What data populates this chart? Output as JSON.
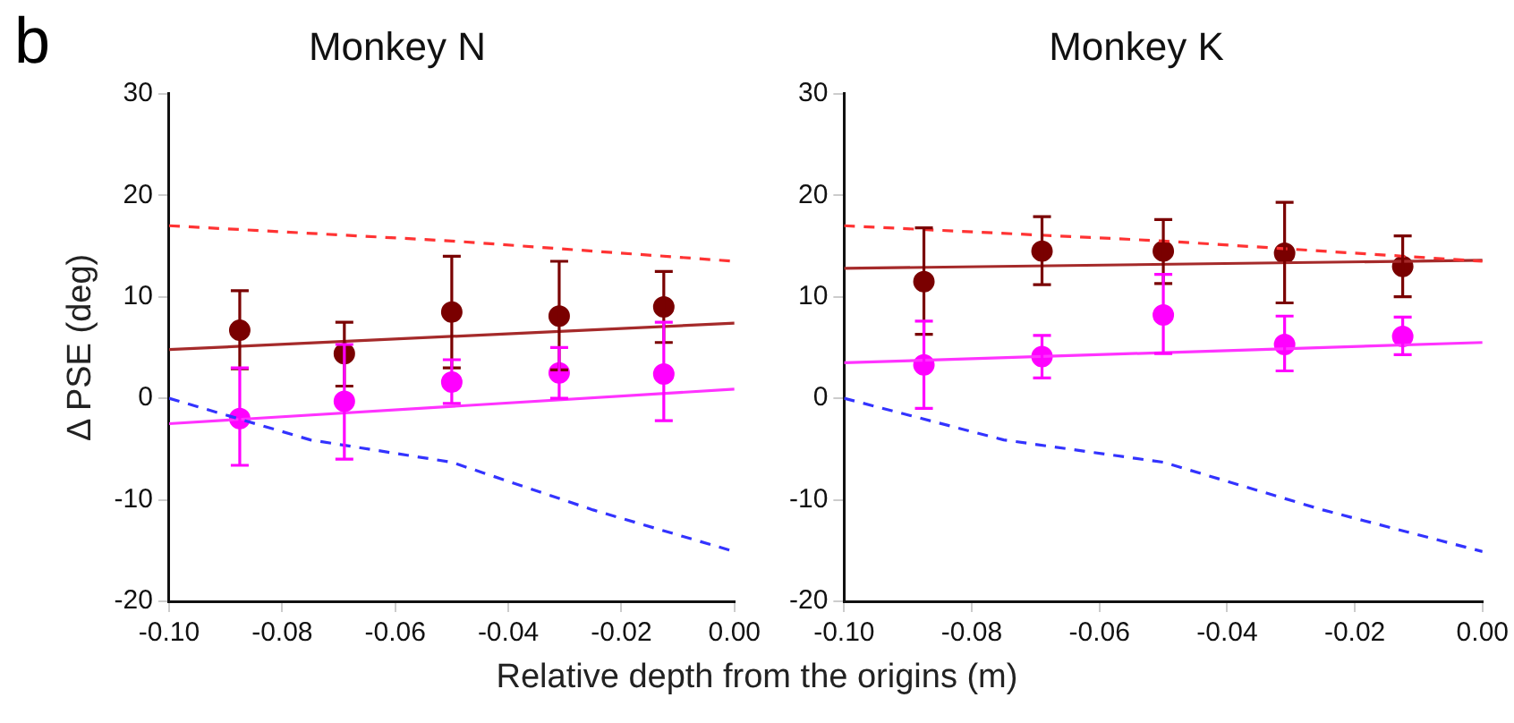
{
  "chart_data": [
    {
      "type": "scatter",
      "title": "Monkey N",
      "ylabel": "Δ PSE (deg)",
      "xlabel": "Relative depth from the origins (m)",
      "annotations": [
        "b"
      ],
      "xlim": [
        -0.1,
        0
      ],
      "xticks": [
        {
          "value": -0.1,
          "label": "-0.10"
        },
        {
          "value": -0.08,
          "label": "-0.08"
        },
        {
          "value": -0.06,
          "label": "-0.06"
        },
        {
          "value": -0.04,
          "label": "-0.04"
        },
        {
          "value": -0.02,
          "label": "-0.02"
        },
        {
          "value": 0,
          "label": "0.00"
        }
      ],
      "ylim": [
        -20,
        30
      ],
      "yticks": [
        -20,
        -10,
        0,
        10,
        20,
        30
      ],
      "grid": false,
      "legend": false,
      "marker": "circle",
      "series": [
        {
          "type": "line",
          "marker": "none",
          "color": "#ff3333",
          "line_style": "dashed",
          "x": [
            -0.1,
            -0.05,
            0
          ],
          "values": [
            17,
            15.5,
            13.5
          ]
        },
        {
          "type": "line",
          "marker": "none",
          "color": "#3333ff",
          "line_style": "dashed",
          "x": [
            -0.1,
            -0.075,
            -0.05,
            -0.025,
            0
          ],
          "values": [
            0,
            -4.1,
            -6.3,
            -11,
            -15.1
          ]
        },
        {
          "type": "line",
          "marker": "none",
          "color": "#a52a2a",
          "line_style": "solid",
          "x": [
            -0.1,
            0
          ],
          "values": [
            4.8,
            7.4
          ]
        },
        {
          "type": "line",
          "marker": "none",
          "color": "#ff33ff",
          "line_style": "solid",
          "x": [
            -0.1,
            0
          ],
          "values": [
            -2.5,
            0.9
          ]
        },
        {
          "color": "#7a0000",
          "x": [
            -0.0875,
            -0.069,
            -0.05,
            -0.031,
            -0.0125
          ],
          "values": [
            6.7,
            4.4,
            8.5,
            8.1,
            9.0
          ],
          "errors": [
            [
              2.9,
              10.6
            ],
            [
              1.2,
              7.5
            ],
            [
              3.0,
              14
            ],
            [
              2.8,
              13.5
            ],
            [
              5.5,
              12.5
            ]
          ]
        },
        {
          "color": "#ff00ff",
          "x": [
            -0.0875,
            -0.069,
            -0.05,
            -0.031,
            -0.0125
          ],
          "values": [
            -2,
            -0.3,
            1.6,
            2.5,
            2.4
          ],
          "errors": [
            [
              -6.6,
              3
            ],
            [
              -6,
              5.3
            ],
            [
              -0.5,
              3.8
            ],
            [
              0,
              5
            ],
            [
              -2.2,
              7.5
            ]
          ]
        }
      ]
    },
    {
      "type": "scatter",
      "title": "Monkey K",
      "xlim": [
        -0.1,
        0
      ],
      "xticks": [
        {
          "value": -0.1,
          "label": "-0.10"
        },
        {
          "value": -0.08,
          "label": "-0.08"
        },
        {
          "value": -0.06,
          "label": "-0.06"
        },
        {
          "value": -0.04,
          "label": "-0.04"
        },
        {
          "value": -0.02,
          "label": "-0.02"
        },
        {
          "value": 0,
          "label": "0.00"
        }
      ],
      "ylim": [
        -20,
        30
      ],
      "yticks": [
        -20,
        -10,
        0,
        10,
        20,
        30
      ],
      "grid": false,
      "legend": false,
      "marker": "circle",
      "series": [
        {
          "type": "line",
          "marker": "none",
          "color": "#ff3333",
          "line_style": "dashed",
          "x": [
            -0.1,
            -0.05,
            0
          ],
          "values": [
            17,
            15.5,
            13.5
          ]
        },
        {
          "type": "line",
          "marker": "none",
          "color": "#3333ff",
          "line_style": "dashed",
          "x": [
            -0.1,
            -0.075,
            -0.05,
            -0.025,
            0
          ],
          "values": [
            0,
            -4.1,
            -6.3,
            -11,
            -15.1
          ]
        },
        {
          "type": "line",
          "marker": "none",
          "color": "#a52a2a",
          "line_style": "solid",
          "x": [
            -0.1,
            0
          ],
          "values": [
            12.8,
            13.6
          ]
        },
        {
          "type": "line",
          "marker": "none",
          "color": "#ff33ff",
          "line_style": "solid",
          "x": [
            -0.1,
            0
          ],
          "values": [
            3.5,
            5.5
          ]
        },
        {
          "color": "#7a0000",
          "x": [
            -0.0875,
            -0.069,
            -0.05,
            -0.031,
            -0.0125
          ],
          "values": [
            11.5,
            14.5,
            14.5,
            14.3,
            13
          ],
          "errors": [
            [
              6.3,
              16.8
            ],
            [
              11.2,
              17.9
            ],
            [
              11.3,
              17.6
            ],
            [
              9.4,
              19.3
            ],
            [
              10,
              16
            ]
          ]
        },
        {
          "color": "#ff00ff",
          "x": [
            -0.0875,
            -0.069,
            -0.05,
            -0.031,
            -0.0125
          ],
          "values": [
            3.3,
            4.1,
            8.2,
            5.3,
            6.1
          ],
          "errors": [
            [
              -1,
              7.6
            ],
            [
              2,
              6.2
            ],
            [
              4.4,
              12.2
            ],
            [
              2.7,
              8.1
            ],
            [
              4.3,
              8
            ]
          ]
        }
      ]
    }
  ]
}
